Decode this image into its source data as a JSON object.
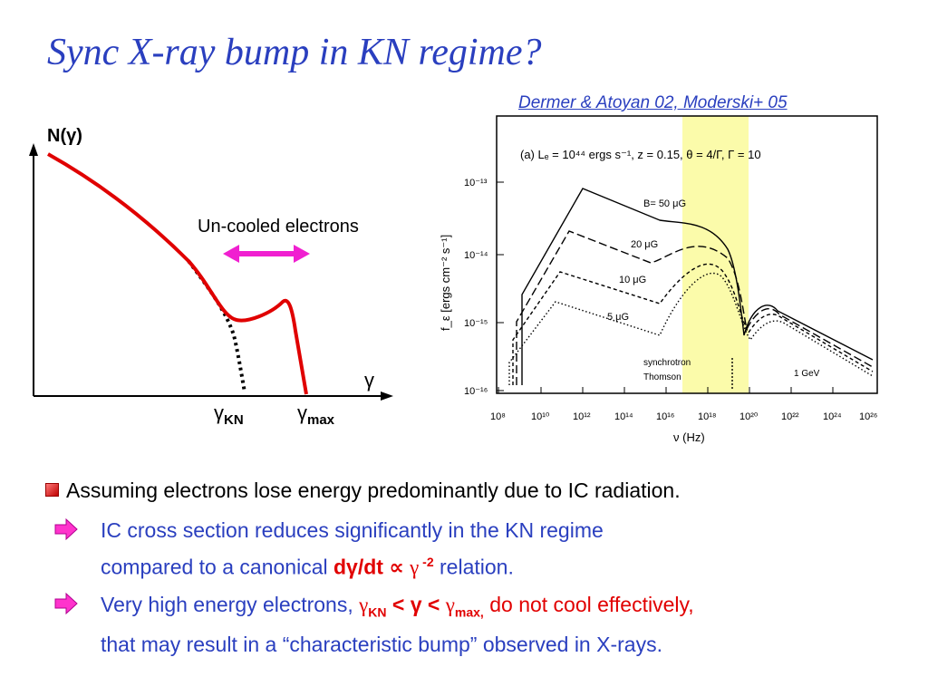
{
  "slide": {
    "title": "Sync X-ray bump in KN regime?",
    "citation": "Dermer & Atoyan 02, Moderski+ 05"
  },
  "left_plot": {
    "y_label": "N(γ)",
    "x_label": "γ",
    "annotation": "Un-cooled electrons",
    "tick_gamma_kn": "γ",
    "tick_gamma_kn_sub": "KN",
    "tick_gamma_max": "γ",
    "tick_gamma_max_sub": "max"
  },
  "right_plot": {
    "params": "(a) Lₑ = 10⁴⁴ ergs s⁻¹, z = 0.15, θ = 4/Γ, Γ = 10",
    "y_label": "f_ε [ergs cm⁻² s⁻¹]",
    "x_label": "ν (Hz)",
    "y_ticks": [
      "10⁻¹³",
      "10⁻¹⁴",
      "10⁻¹⁵",
      "10⁻¹⁶"
    ],
    "x_ticks": [
      "10⁸",
      "10¹⁰",
      "10¹²",
      "10¹⁴",
      "10¹⁶",
      "10¹⁸",
      "10²⁰",
      "10²²",
      "10²⁴",
      "10²⁶"
    ],
    "curve_labels": [
      "B= 50 μG",
      "20 μG",
      "10 μG",
      "5 μG"
    ],
    "synchrotron_label": "synchrotron",
    "thomson_label": "Thomson",
    "gev_label": "1 GeV",
    "highlight_color": "#fbfbaa"
  },
  "bullets": {
    "main": "Assuming electrons lose energy predominantly due to IC radiation.",
    "sub1": {
      "line1": "IC cross section reduces significantly in the KN regime",
      "line2_pre": "compared to a canonical ",
      "rel_d": "dγ/dt",
      "rel_prop": " ∝ ",
      "rel_gamma": "γ",
      "rel_exp": " -2",
      "line2_post": " relation."
    },
    "sub2": {
      "line1_pre": "Very high energy electrons, ",
      "g1": "γ",
      "g1_sub": "KN",
      "lt1": " < γ < ",
      "g2": "γ",
      "g2_sub": "max,",
      "line1_red": " do not cool effectively,",
      "line2": "that may result in a “characteristic bump” observed in X-rays."
    }
  }
}
